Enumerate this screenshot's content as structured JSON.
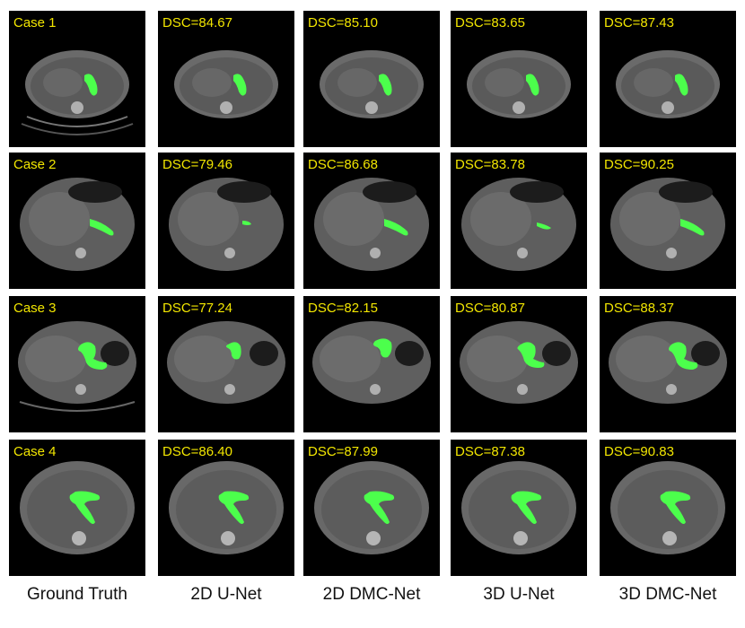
{
  "columns": [
    "Ground Truth",
    "2D U-Net",
    "2D DMC-Net",
    "3D U-Net",
    "3D DMC-Net"
  ],
  "rows": [
    {
      "case_label": "Case 1",
      "scores": [
        "DSC=84.67",
        "DSC=85.10",
        "DSC=83.65",
        "DSC=87.43"
      ]
    },
    {
      "case_label": "Case 2",
      "scores": [
        "DSC=79.46",
        "DSC=86.68",
        "DSC=83.78",
        "DSC=90.25"
      ]
    },
    {
      "case_label": "Case 3",
      "scores": [
        "DSC=77.24",
        "DSC=82.15",
        "DSC=80.87",
        "DSC=88.37"
      ]
    },
    {
      "case_label": "Case 4",
      "scores": [
        "DSC=86.40",
        "DSC=87.99",
        "DSC=87.38",
        "DSC=90.83"
      ]
    }
  ],
  "colors": {
    "label_text": "#f2e600",
    "segmentation": "#4cff4c",
    "panel_background": "#000000"
  }
}
